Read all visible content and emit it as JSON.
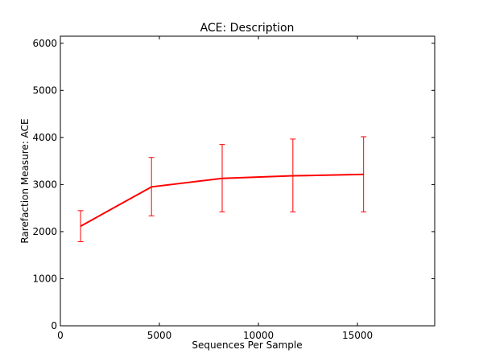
{
  "chart_data": {
    "type": "line",
    "title": "ACE: Description",
    "xlabel": "Sequences Per Sample",
    "ylabel": "Rarefaction Measure: ACE",
    "xlim": [
      0,
      18900
    ],
    "ylim": [
      0,
      6150
    ],
    "xticks": [
      0,
      5000,
      10000,
      15000
    ],
    "yticks": [
      0,
      1000,
      2000,
      3000,
      4000,
      5000,
      6000
    ],
    "grid": false,
    "series": [
      {
        "color": "#ff0000",
        "points": [
          {
            "x": 1020,
            "y": 2115,
            "err_low": 1785,
            "err_high": 2445
          },
          {
            "x": 4600,
            "y": 2950,
            "err_low": 2335,
            "err_high": 3575
          },
          {
            "x": 8170,
            "y": 3130,
            "err_low": 2420,
            "err_high": 3850
          },
          {
            "x": 11740,
            "y": 3185,
            "err_low": 2420,
            "err_high": 3965
          },
          {
            "x": 15310,
            "y": 3215,
            "err_low": 2420,
            "err_high": 4015
          }
        ]
      }
    ]
  }
}
